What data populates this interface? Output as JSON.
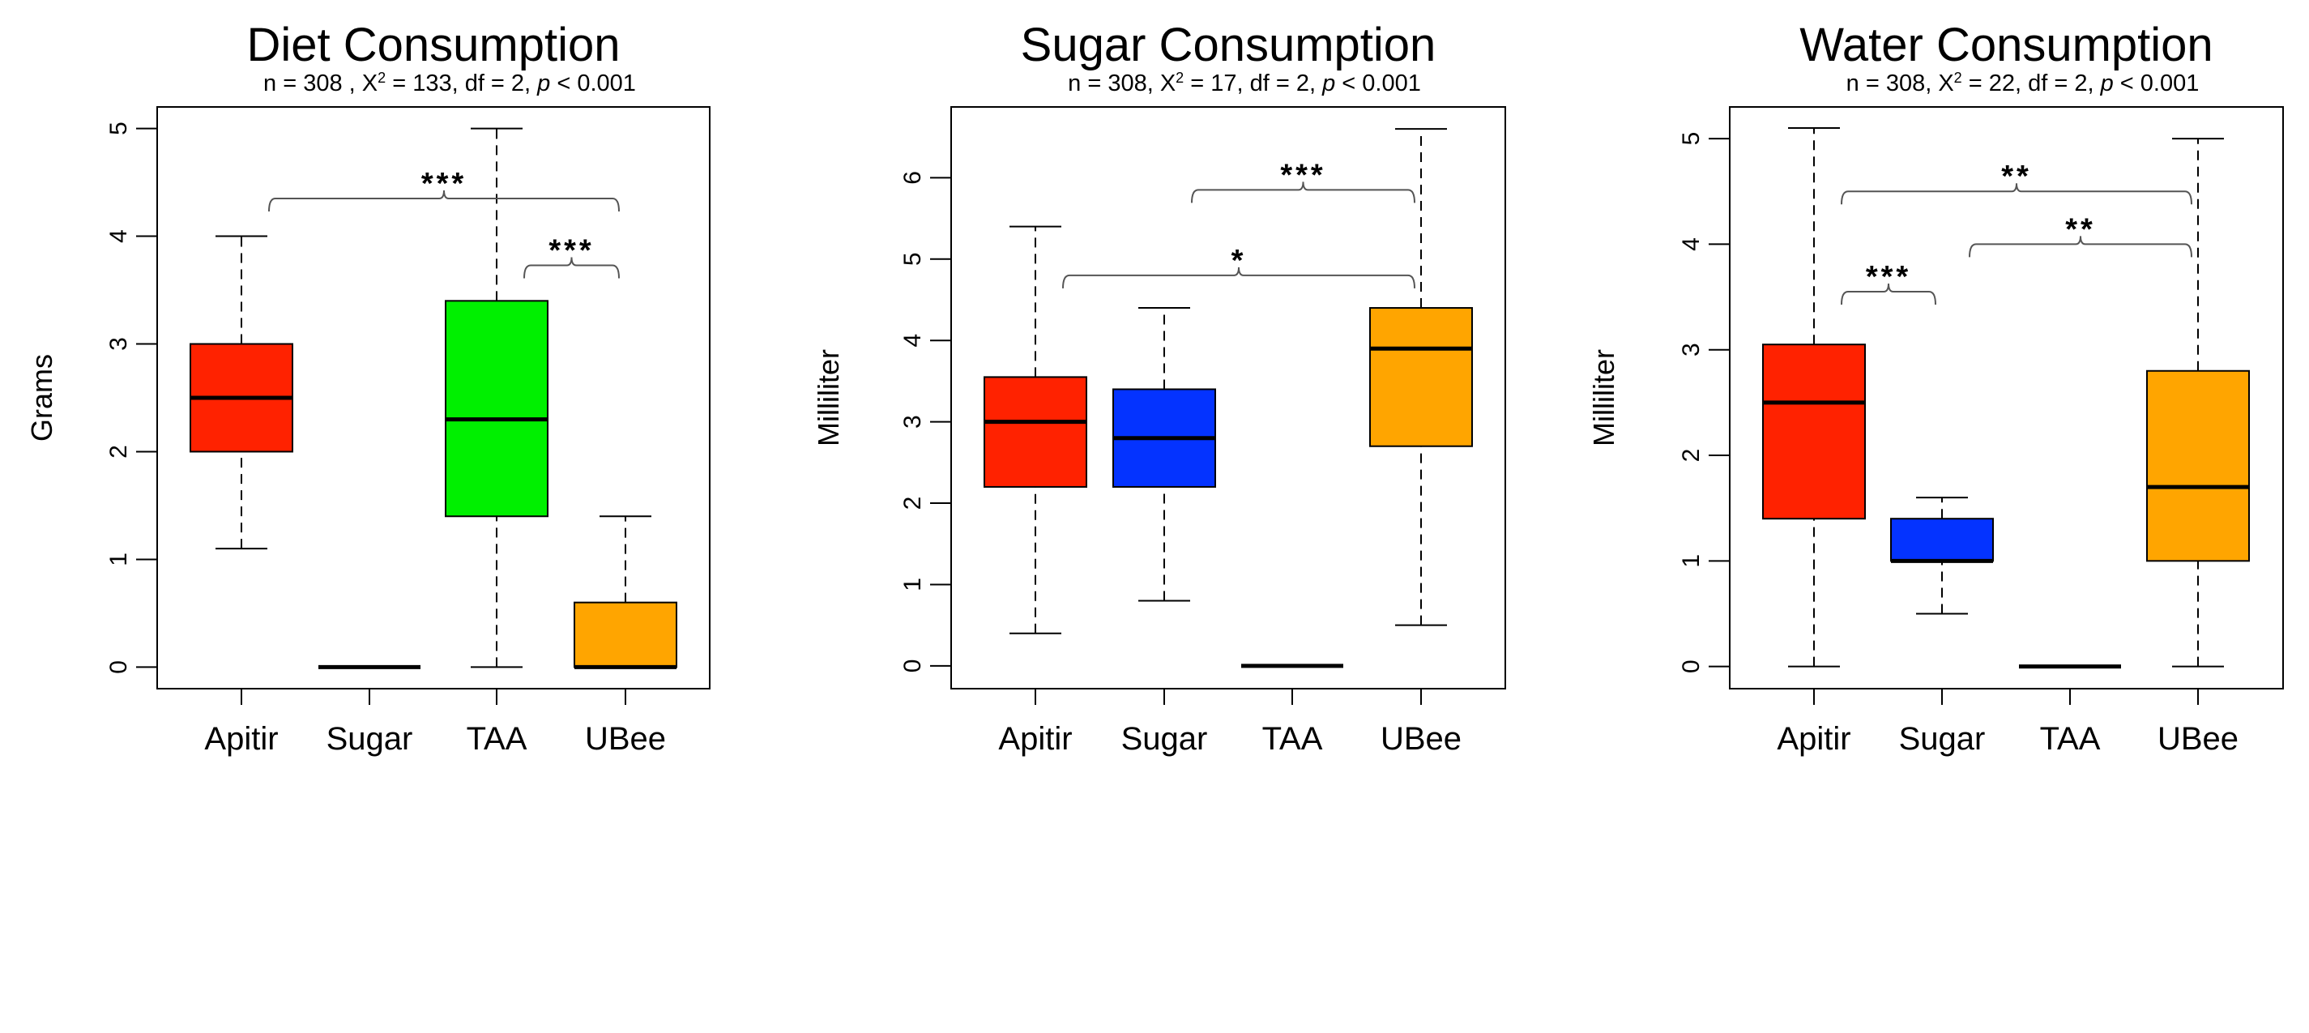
{
  "chart_data": [
    {
      "type": "box",
      "title": "Diet Consumption",
      "subtitle": {
        "pre": "n = 308 , X",
        "sup": "2",
        "mid": " = 133, df = 2, ",
        "ital": "p",
        "post": " < 0.001"
      },
      "xlabel": "",
      "ylabel": "Grams",
      "categories": [
        "Apitir",
        "Sugar",
        "TAA",
        "UBee"
      ],
      "yticks": [
        0,
        1,
        2,
        3,
        4,
        5
      ],
      "ylim": [
        -0.2,
        5.2
      ],
      "grid": false,
      "colors": [
        "#ff2200",
        "#ff2200",
        "#00f000",
        "#ffa500"
      ],
      "boxes": [
        {
          "min": 1.1,
          "q1": 2.0,
          "median": 2.5,
          "q3": 3.0,
          "max": 4.0
        },
        {
          "min": 0,
          "q1": 0,
          "median": 0,
          "q3": 0,
          "max": 0
        },
        {
          "min": 0,
          "q1": 1.4,
          "median": 2.3,
          "q3": 3.4,
          "max": 5.0
        },
        {
          "min": 0,
          "q1": 0,
          "median": 0,
          "q3": 0.6,
          "max": 1.4
        }
      ],
      "significance": [
        {
          "from": "Apitir",
          "to": "UBee",
          "y": 4.35,
          "label": "***"
        },
        {
          "from": "TAA",
          "to": "UBee",
          "y": 3.73,
          "label": "***"
        }
      ]
    },
    {
      "type": "box",
      "title": "Sugar Consumption",
      "subtitle": {
        "pre": "n = 308, X",
        "sup": "2",
        "mid": " = 17, df = 2, ",
        "ital": "p",
        "post": " < 0.001"
      },
      "xlabel": "",
      "ylabel": "Milliliter",
      "categories": [
        "Apitir",
        "Sugar",
        "TAA",
        "UBee"
      ],
      "yticks": [
        0,
        1,
        2,
        3,
        4,
        5,
        6
      ],
      "ylim": [
        -0.28,
        6.87
      ],
      "grid": false,
      "colors": [
        "#ff2200",
        "#0433ff",
        "#0433ff",
        "#ffa500"
      ],
      "boxes": [
        {
          "min": 0.4,
          "q1": 2.2,
          "median": 3.0,
          "q3": 3.55,
          "max": 5.4
        },
        {
          "min": 0.8,
          "q1": 2.2,
          "median": 2.8,
          "q3": 3.4,
          "max": 4.4
        },
        {
          "min": 0,
          "q1": 0,
          "median": 0,
          "q3": 0,
          "max": 0
        },
        {
          "min": 0.5,
          "q1": 2.7,
          "median": 3.9,
          "q3": 4.4,
          "max": 6.6
        }
      ],
      "significance": [
        {
          "from": "Sugar",
          "to": "UBee",
          "y": 5.85,
          "label": "***"
        },
        {
          "from": "Apitir",
          "to": "UBee",
          "y": 4.8,
          "label": "*"
        }
      ]
    },
    {
      "type": "box",
      "title": "Water Consumption",
      "subtitle": {
        "pre": "n = 308, X",
        "sup": "2",
        "mid": " = 22, df = 2, ",
        "ital": "p",
        "post": " < 0.001"
      },
      "xlabel": "",
      "ylabel": "Milliliter",
      "categories": [
        "Apitir",
        "Sugar",
        "TAA",
        "UBee"
      ],
      "yticks": [
        0,
        1,
        2,
        3,
        4,
        5
      ],
      "ylim": [
        -0.21,
        5.3
      ],
      "grid": false,
      "colors": [
        "#ff2200",
        "#0433ff",
        "#0433ff",
        "#ffa500"
      ],
      "boxes": [
        {
          "min": 0,
          "q1": 1.4,
          "median": 2.5,
          "q3": 3.05,
          "max": 5.1
        },
        {
          "min": 0.5,
          "q1": 1.0,
          "median": 1.0,
          "q3": 1.4,
          "max": 1.6
        },
        {
          "min": 0,
          "q1": 0,
          "median": 0,
          "q3": 0,
          "max": 0
        },
        {
          "min": 0,
          "q1": 1.0,
          "median": 1.7,
          "q3": 2.8,
          "max": 5.0
        }
      ],
      "significance": [
        {
          "from": "Apitir",
          "to": "UBee",
          "y": 4.5,
          "label": "**"
        },
        {
          "from": "Sugar",
          "to": "UBee",
          "y": 4.0,
          "label": "**"
        },
        {
          "from": "Apitir",
          "to": "Sugar",
          "y": 3.55,
          "label": "***"
        }
      ]
    }
  ]
}
